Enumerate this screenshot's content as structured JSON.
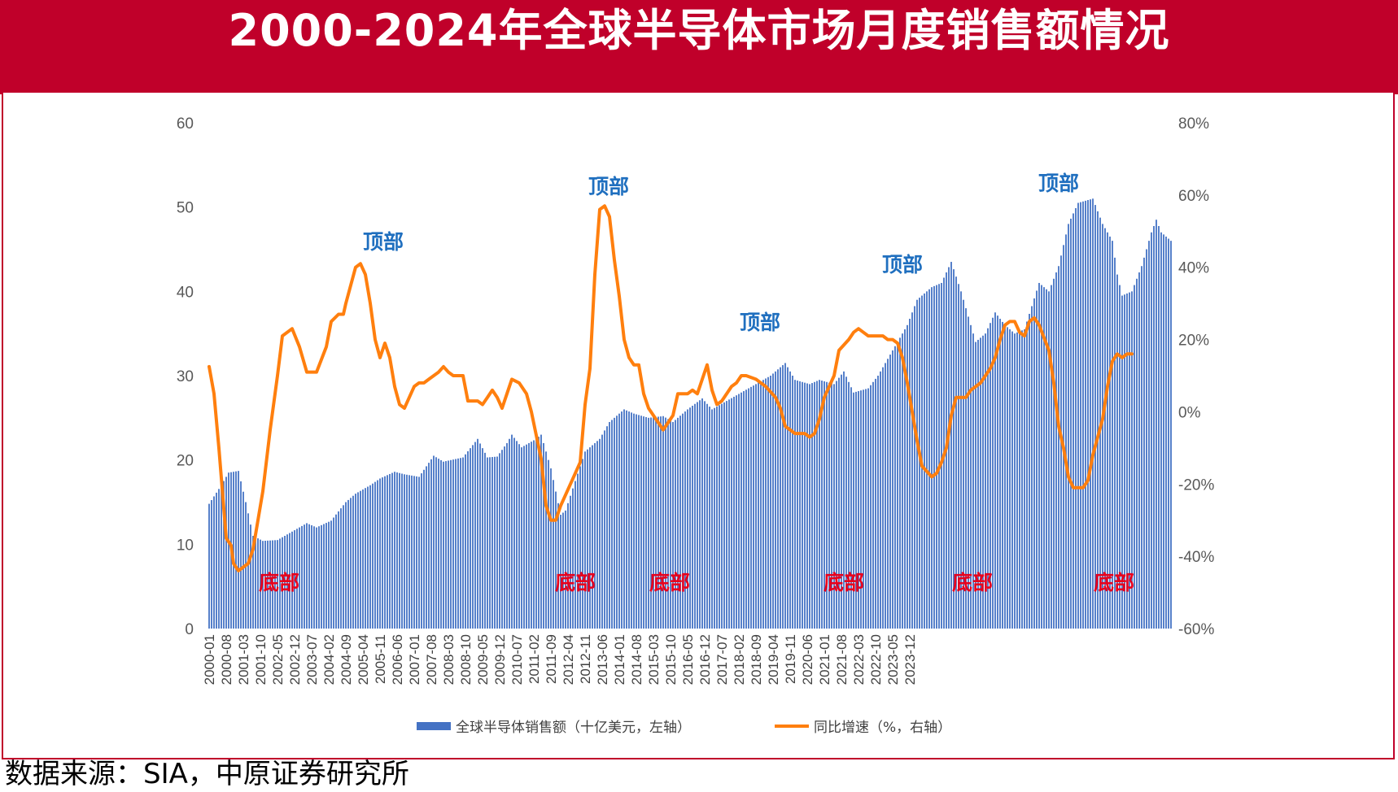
{
  "title": "2000-2024年全球半导体市场月度销售额情况",
  "source": "数据来源：SIA，中原证券研究所",
  "colors": {
    "banner": "#c0002a",
    "bar": "#4472c4",
    "line": "#ff7f0e",
    "top_label": "#1f6fbf",
    "bottom_label": "#e8001c"
  },
  "chart_data": {
    "type": "bar+line",
    "y_left": {
      "ticks": [
        "60",
        "50",
        "40",
        "30",
        "20",
        "10",
        "0"
      ],
      "range": [
        0,
        60
      ]
    },
    "y_right": {
      "ticks": [
        "80%",
        "60%",
        "40%",
        "20%",
        "0%",
        "-20%",
        "-40%",
        "-60%"
      ],
      "range": [
        -60,
        80
      ]
    },
    "x_tick_labels": [
      "2000-01",
      "2000-08",
      "2001-03",
      "2001-10",
      "2002-05",
      "2002-12",
      "2003-07",
      "2004-02",
      "2004-09",
      "2005-04",
      "2005-11",
      "2006-06",
      "2007-01",
      "2007-08",
      "2008-03",
      "2008-10",
      "2009-05",
      "2009-12",
      "2010-07",
      "2011-02",
      "2011-09",
      "2012-04",
      "2012-11",
      "2013-06",
      "2014-01",
      "2014-08",
      "2015-03",
      "2015-10",
      "2016-05",
      "2016-12",
      "2017-07",
      "2018-02",
      "2018-09",
      "2019-04",
      "2019-11",
      "2020-06",
      "2021-01",
      "2021-08",
      "2022-03",
      "2022-10",
      "2023-05",
      "2023-12"
    ],
    "legend": [
      "全球半导体销售额（十亿美元，左轴）",
      "同比增速（%，右轴）"
    ],
    "series": [
      {
        "name": "全球半导体销售额（十亿美元，左轴）",
        "axis": "left",
        "points": [
          [
            0,
            14.8
          ],
          [
            5,
            17
          ],
          [
            8,
            18.5
          ],
          [
            12,
            18.7
          ],
          [
            15,
            15
          ],
          [
            18,
            11
          ],
          [
            22,
            10.4
          ],
          [
            28,
            10.5
          ],
          [
            34,
            11.5
          ],
          [
            40,
            12.5
          ],
          [
            44,
            12
          ],
          [
            50,
            12.8
          ],
          [
            56,
            15
          ],
          [
            60,
            16
          ],
          [
            66,
            17
          ],
          [
            70,
            17.8
          ],
          [
            76,
            18.6
          ],
          [
            80,
            18.3
          ],
          [
            86,
            18
          ],
          [
            92,
            20.5
          ],
          [
            96,
            19.8
          ],
          [
            104,
            20.3
          ],
          [
            110,
            22.5
          ],
          [
            114,
            20.3
          ],
          [
            118,
            20.4
          ],
          [
            122,
            22
          ],
          [
            124,
            23
          ],
          [
            128,
            21.5
          ],
          [
            134,
            22.5
          ],
          [
            136,
            23
          ],
          [
            140,
            19
          ],
          [
            144,
            13.5
          ],
          [
            146,
            14
          ],
          [
            150,
            17.5
          ],
          [
            154,
            21
          ],
          [
            160,
            22.5
          ],
          [
            164,
            24.5
          ],
          [
            170,
            26
          ],
          [
            174,
            25.5
          ],
          [
            180,
            25
          ],
          [
            186,
            25.2
          ],
          [
            190,
            24.5
          ],
          [
            196,
            26
          ],
          [
            202,
            27.3
          ],
          [
            206,
            26
          ],
          [
            212,
            27
          ],
          [
            218,
            28
          ],
          [
            224,
            29
          ],
          [
            230,
            30
          ],
          [
            236,
            31.5
          ],
          [
            240,
            29.5
          ],
          [
            246,
            29
          ],
          [
            250,
            29.5
          ],
          [
            256,
            29
          ],
          [
            260,
            30.5
          ],
          [
            264,
            28
          ],
          [
            270,
            28.5
          ],
          [
            274,
            30
          ],
          [
            280,
            33
          ],
          [
            286,
            36
          ],
          [
            290,
            39
          ],
          [
            296,
            40.5
          ],
          [
            300,
            41
          ],
          [
            304,
            43.5
          ],
          [
            308,
            40
          ],
          [
            314,
            34
          ],
          [
            318,
            35
          ],
          [
            322,
            37.5
          ],
          [
            326,
            36
          ],
          [
            330,
            35
          ],
          [
            334,
            35.5
          ],
          [
            340,
            41
          ],
          [
            344,
            40
          ],
          [
            348,
            43
          ],
          [
            352,
            48
          ],
          [
            356,
            50.5
          ],
          [
            362,
            51
          ],
          [
            366,
            48
          ],
          [
            370,
            46
          ],
          [
            372,
            42
          ],
          [
            374,
            39.5
          ],
          [
            378,
            40
          ],
          [
            382,
            43
          ],
          [
            386,
            47
          ],
          [
            388,
            48.5
          ],
          [
            390,
            47
          ],
          [
            394,
            46
          ]
        ]
      },
      {
        "name": "同比增速（%，右轴）",
        "axis": "right",
        "points": [
          [
            0,
            12.5
          ],
          [
            2,
            5
          ],
          [
            4,
            -10
          ],
          [
            7,
            -35
          ],
          [
            9,
            -37
          ],
          [
            10,
            -42
          ],
          [
            12,
            -44
          ],
          [
            16,
            -42
          ],
          [
            18,
            -38
          ],
          [
            22,
            -22
          ],
          [
            25,
            -5
          ],
          [
            28,
            10
          ],
          [
            30,
            21
          ],
          [
            34,
            23
          ],
          [
            37,
            18
          ],
          [
            40,
            11
          ],
          [
            44,
            11
          ],
          [
            48,
            18
          ],
          [
            50,
            25
          ],
          [
            53,
            27
          ],
          [
            55,
            27
          ],
          [
            56,
            30
          ],
          [
            58,
            35
          ],
          [
            60,
            40
          ],
          [
            62,
            41
          ],
          [
            64,
            38
          ],
          [
            66,
            30
          ],
          [
            68,
            20
          ],
          [
            70,
            15
          ],
          [
            72,
            19
          ],
          [
            74,
            15
          ],
          [
            76,
            7
          ],
          [
            78,
            2
          ],
          [
            80,
            1
          ],
          [
            84,
            7
          ],
          [
            86,
            8
          ],
          [
            88,
            8
          ],
          [
            90,
            9
          ],
          [
            94,
            11
          ],
          [
            96,
            12.5
          ],
          [
            98,
            11
          ],
          [
            100,
            10
          ],
          [
            104,
            10
          ],
          [
            106,
            3
          ],
          [
            110,
            3
          ],
          [
            112,
            2
          ],
          [
            114,
            4
          ],
          [
            116,
            6
          ],
          [
            118,
            4
          ],
          [
            120,
            1
          ],
          [
            122,
            5
          ],
          [
            124,
            9
          ],
          [
            127,
            8
          ],
          [
            130,
            5
          ],
          [
            132,
            0
          ],
          [
            136,
            -13
          ],
          [
            138,
            -26
          ],
          [
            140,
            -30
          ],
          [
            142,
            -30
          ],
          [
            144,
            -26
          ],
          [
            148,
            -20
          ],
          [
            152,
            -14
          ],
          [
            154,
            2
          ],
          [
            156,
            12
          ],
          [
            158,
            38
          ],
          [
            160,
            56
          ],
          [
            162,
            57
          ],
          [
            164,
            54
          ],
          [
            166,
            42
          ],
          [
            168,
            32
          ],
          [
            170,
            20
          ],
          [
            172,
            15
          ],
          [
            174,
            13
          ],
          [
            176,
            13
          ],
          [
            178,
            5
          ],
          [
            180,
            1
          ],
          [
            184,
            -3
          ],
          [
            186,
            -5
          ],
          [
            188,
            -3
          ],
          [
            190,
            -1
          ],
          [
            192,
            5
          ],
          [
            196,
            5
          ],
          [
            198,
            6
          ],
          [
            200,
            5
          ],
          [
            202,
            9
          ],
          [
            204,
            13
          ],
          [
            206,
            6
          ],
          [
            208,
            2
          ],
          [
            210,
            3
          ],
          [
            212,
            5
          ],
          [
            214,
            7
          ],
          [
            216,
            8
          ],
          [
            218,
            10
          ],
          [
            220,
            10
          ],
          [
            224,
            9
          ],
          [
            228,
            7
          ],
          [
            232,
            4
          ],
          [
            234,
            1
          ],
          [
            236,
            -4
          ],
          [
            238,
            -5
          ],
          [
            240,
            -6
          ],
          [
            244,
            -6
          ],
          [
            246,
            -7
          ],
          [
            248,
            -6
          ],
          [
            250,
            -2
          ],
          [
            252,
            4
          ],
          [
            256,
            10
          ],
          [
            258,
            17
          ],
          [
            262,
            20
          ],
          [
            264,
            22
          ],
          [
            266,
            23
          ],
          [
            268,
            22
          ],
          [
            270,
            21
          ],
          [
            272,
            21
          ],
          [
            276,
            21
          ],
          [
            278,
            20
          ],
          [
            280,
            20
          ],
          [
            282,
            19
          ],
          [
            284,
            15
          ],
          [
            286,
            8
          ],
          [
            288,
            0
          ],
          [
            290,
            -8
          ],
          [
            292,
            -15
          ],
          [
            296,
            -18
          ],
          [
            298,
            -17
          ],
          [
            300,
            -14
          ],
          [
            302,
            -10
          ],
          [
            304,
            -1
          ],
          [
            306,
            4
          ],
          [
            310,
            4
          ],
          [
            312,
            6
          ],
          [
            316,
            8
          ],
          [
            318,
            10
          ],
          [
            320,
            12
          ],
          [
            322,
            15
          ],
          [
            324,
            20
          ],
          [
            326,
            24
          ],
          [
            328,
            25
          ],
          [
            330,
            25
          ],
          [
            332,
            22
          ],
          [
            334,
            21
          ],
          [
            336,
            25
          ],
          [
            338,
            26
          ],
          [
            340,
            24
          ],
          [
            344,
            17
          ],
          [
            346,
            8
          ],
          [
            348,
            -4
          ],
          [
            350,
            -10
          ],
          [
            352,
            -18
          ],
          [
            354,
            -21
          ],
          [
            358,
            -21
          ],
          [
            360,
            -19
          ],
          [
            362,
            -12
          ],
          [
            366,
            -2
          ],
          [
            368,
            7
          ],
          [
            370,
            14
          ],
          [
            372,
            16
          ],
          [
            374,
            15
          ],
          [
            376,
            16
          ],
          [
            378,
            16
          ]
        ]
      }
    ],
    "annotations": [
      {
        "text": "顶部",
        "kind": "top"
      },
      {
        "text": "顶部",
        "kind": "top"
      },
      {
        "text": "顶部",
        "kind": "top"
      },
      {
        "text": "顶部",
        "kind": "top"
      },
      {
        "text": "顶部",
        "kind": "top"
      },
      {
        "text": "底部",
        "kind": "bottom"
      },
      {
        "text": "底部",
        "kind": "bottom"
      },
      {
        "text": "底部",
        "kind": "bottom"
      },
      {
        "text": "底部",
        "kind": "bottom"
      },
      {
        "text": "底部",
        "kind": "bottom"
      },
      {
        "text": "底部",
        "kind": "bottom"
      }
    ]
  }
}
